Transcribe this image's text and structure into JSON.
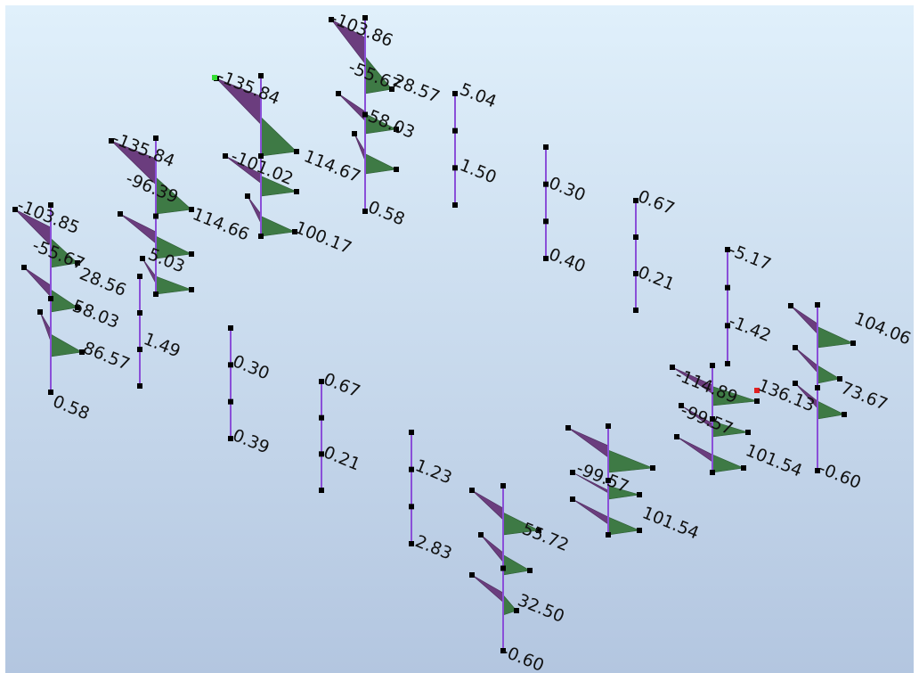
{
  "viewport": {
    "labels": [
      "-103.86",
      "-55.67",
      "28.57",
      "5.04",
      "-135.84",
      "58.03",
      "1.50",
      "-135.84",
      "114.67",
      "-101.02",
      "-96.39",
      "0.30",
      "0.67",
      "114.66",
      "100.17",
      "0.58",
      "-103.85",
      "0.40",
      "-55.67",
      "28.56",
      "5.03",
      "0.21",
      "-5.17",
      "58.03",
      "104.06",
      "-1.42",
      "86.57",
      "1.49",
      "0.30",
      "-114.89",
      "136.13",
      "73.67",
      "0.67",
      "0.58",
      "-99.57",
      "0.39",
      "101.54",
      "-0.60",
      "0.21",
      "-99.57",
      "1.23",
      "101.54",
      "55.72",
      "2.83",
      "32.50",
      "-0.60"
    ]
  }
}
